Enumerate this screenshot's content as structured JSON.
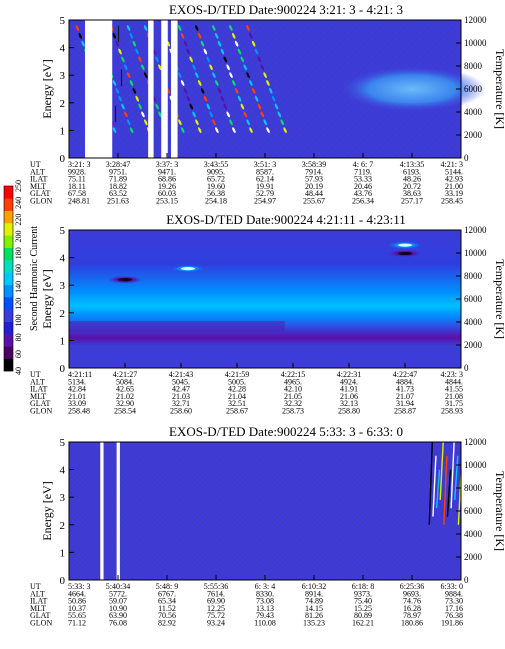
{
  "page": {
    "background": "#ffffff",
    "plot_color": "#3c3cd8",
    "grid_color": "#5a2c8c"
  },
  "colorbar": {
    "label": "Second Harmonic Current",
    "ticks": [
      "40",
      "60",
      "80",
      "100",
      "120",
      "140",
      "160",
      "180",
      "200",
      "220",
      "240",
      "250"
    ],
    "colors": [
      "#000000",
      "#4a0060",
      "#5a10a8",
      "#2020d0",
      "#3c3cd8",
      "#0050ff",
      "#0090ff",
      "#00c8ff",
      "#00e0c0",
      "#00e060",
      "#80f000",
      "#e0f000",
      "#ffa000",
      "#ff4000",
      "#ff0000"
    ]
  },
  "panels": [
    {
      "title": "EXOS-D/TED   Date:900224  3:21: 3 - 4:21: 3",
      "ylabel": "Energy [eV]",
      "y2label": "Temperature [K]",
      "yticks": [
        "0",
        "1",
        "2",
        "3",
        "4",
        "5"
      ],
      "y2ticks": [
        "0",
        "2000",
        "4000",
        "6000",
        "8000",
        "10000",
        "12000"
      ],
      "table": {
        "row_labels": [
          "UT",
          "ALT",
          "ILAT",
          "MLT",
          "GLAT",
          "GLON"
        ],
        "columns": [
          [
            "3:21: 3",
            "9928.",
            "75.11",
            "18.11",
            "67.58",
            "248.81"
          ],
          [
            "3:28:47",
            "9751.",
            "71.89",
            "18.82",
            "63.52",
            "251.63"
          ],
          [
            "3:37: 3",
            "9471.",
            "68.86",
            "19.26",
            "60.03",
            "253.15"
          ],
          [
            "3:43:55",
            "9095.",
            "65.72",
            "19.60",
            "56.38",
            "254.18"
          ],
          [
            "3:51: 3",
            "8587.",
            "62.14",
            "19.91",
            "52.79",
            "254.97"
          ],
          [
            "3:58:39",
            "7914.",
            "57.93",
            "20.19",
            "48.44",
            "255.67"
          ],
          [
            "4: 6: 7",
            "7119.",
            "53.33",
            "20.46",
            "43.76",
            "256.34"
          ],
          [
            "4:13:35",
            "6193.",
            "48.26",
            "20.72",
            "38.63",
            "257.17"
          ],
          [
            "4:21: 3",
            "5144.",
            "42.93",
            "21.00",
            "33.19",
            "258.45"
          ]
        ]
      }
    },
    {
      "title": "EXOS-D/TED   Date:900224  4:21:11 - 4:23:11",
      "ylabel": "Energy [eV]",
      "y2label": "Temperature [K]",
      "yticks": [
        "0",
        "1",
        "2",
        "3",
        "4",
        "5"
      ],
      "y2ticks": [
        "0",
        "2000",
        "4000",
        "6000",
        "8000",
        "10000",
        "12000"
      ],
      "table": {
        "row_labels": [
          "UT",
          "ALT",
          "ILAT",
          "MLT",
          "GLAT",
          "GLON"
        ],
        "columns": [
          [
            "4:21:11",
            "5134.",
            "42.84",
            "21.01",
            "33.09",
            "258.48"
          ],
          [
            "4:21:27",
            "5084.",
            "42.65",
            "21.02",
            "32.90",
            "258.54"
          ],
          [
            "4:21:43",
            "5045.",
            "42.47",
            "21.03",
            "32.71",
            "258.60"
          ],
          [
            "4:21:59",
            "5005.",
            "42.28",
            "21.04",
            "32.51",
            "258.67"
          ],
          [
            "4:22:15",
            "4965.",
            "42.10",
            "21.05",
            "32.32",
            "258.73"
          ],
          [
            "4:22:31",
            "4924.",
            "41.91",
            "21.06",
            "32.13",
            "258.80"
          ],
          [
            "4:22:47",
            "4884.",
            "41.73",
            "21.07",
            "31.94",
            "258.87"
          ],
          [
            "4:23: 3",
            "4844.",
            "41.55",
            "21.08",
            "31.75",
            "258.93"
          ]
        ]
      }
    },
    {
      "title": "EXOS-D/TED   Date:900224  5:33: 3 - 6:33: 0",
      "ylabel": "Energy [eV]",
      "y2label": "Temperature [K]",
      "yticks": [
        "0",
        "1",
        "2",
        "3",
        "4",
        "5"
      ],
      "y2ticks": [
        "0",
        "2000",
        "4000",
        "6000",
        "8000",
        "10000",
        "12000"
      ],
      "table": {
        "row_labels": [
          "UT",
          "ALT",
          "ILAT",
          "MLT",
          "GLAT",
          "GLON"
        ],
        "columns": [
          [
            "5:33: 3",
            "4664.",
            "50.86",
            "10.37",
            "55.65",
            "71.12"
          ],
          [
            "5:40:34",
            "5772.",
            "59.07",
            "10.90",
            "63.90",
            "76.08"
          ],
          [
            "5:48: 9",
            "6767.",
            "65.34",
            "11.52",
            "70.56",
            "82.92"
          ],
          [
            "5:55:36",
            "7614.",
            "69.90",
            "12.25",
            "75.72",
            "93.24"
          ],
          [
            "6: 3: 4",
            "8330.",
            "73.08",
            "13.13",
            "79.43",
            "110.08"
          ],
          [
            "6:10:32",
            "8914.",
            "74.89",
            "14.15",
            "81.26",
            "135.23"
          ],
          [
            "6:18: 8",
            "9373.",
            "75.40",
            "15.25",
            "80.89",
            "162.21"
          ],
          [
            "6:25:36",
            "9693.",
            "74.76",
            "16.28",
            "78.97",
            "180.86"
          ],
          [
            "6:33: 0",
            "9884.",
            "73.30",
            "17.16",
            "76.38",
            "191.86"
          ]
        ]
      }
    }
  ],
  "chart_data": [
    {
      "type": "heatmap",
      "title": "EXOS-D/TED   Date:900224  3:21: 3 - 4:21: 3",
      "xlabel": "UT",
      "ylabel": "Energy [eV]",
      "y2label": "Temperature [K]",
      "x": [
        "3:21: 3",
        "3:28:47",
        "3:37: 3",
        "3:43:55",
        "3:51: 3",
        "3:58:39",
        "4: 6: 7",
        "4:13:35",
        "4:21: 3"
      ],
      "ylim": [
        0,
        5
      ],
      "y2lim": [
        0,
        12000
      ],
      "data_gaps_ut": [
        "3:23:30-3:27:40",
        "3:33:10-3:34:00",
        "3:35:10-3:36:10",
        "3:36:40-3:37:40"
      ],
      "features": [
        {
          "type": "diagonal_striations",
          "x_range": [
            "3:22:20",
            "3:51:03"
          ],
          "energy_range_eV": [
            0.5,
            5
          ]
        },
        {
          "type": "enhanced_band",
          "x_range": [
            "4:00:00",
            "4:21:03"
          ],
          "temperature_range_K": [
            4000,
            8000
          ]
        }
      ]
    },
    {
      "type": "heatmap",
      "title": "EXOS-D/TED   Date:900224  4:21:11 - 4:23:11",
      "xlabel": "UT",
      "ylabel": "Energy [eV]",
      "y2label": "Temperature [K]",
      "x": [
        "4:21:11",
        "4:21:27",
        "4:21:43",
        "4:21:59",
        "4:22:15",
        "4:22:31",
        "4:22:47",
        "4:23: 3"
      ],
      "ylim": [
        0,
        5
      ],
      "y2lim": [
        0,
        12000
      ],
      "features": [
        {
          "type": "enhanced_band",
          "energy_range_eV": [
            2.0,
            2.9
          ],
          "level": "high"
        },
        {
          "type": "enhanced_band",
          "energy_range_eV": [
            3.3,
            4.2
          ],
          "level": "medium"
        },
        {
          "type": "depletion_band",
          "energy_range_eV": [
            1.3,
            1.7
          ]
        },
        {
          "type": "spot",
          "x": "4:21:27",
          "energy_eV": 3.2,
          "level": "low"
        },
        {
          "type": "spot",
          "x": "4:21:45",
          "energy_eV": 3.6,
          "level": "high"
        },
        {
          "type": "spot",
          "x": "4:22:47",
          "energy_eV": 4.45,
          "level": "high"
        },
        {
          "type": "spot",
          "x": "4:22:47",
          "energy_eV": 4.15,
          "level": "low"
        }
      ]
    },
    {
      "type": "heatmap",
      "title": "EXOS-D/TED   Date:900224  5:33: 3 - 6:33: 0",
      "xlabel": "UT",
      "ylabel": "Energy [eV]",
      "y2label": "Temperature [K]",
      "x": [
        "5:33: 3",
        "5:40:34",
        "5:48: 9",
        "5:55:36",
        "6: 3: 4",
        "6:10:32",
        "6:18: 8",
        "6:25:36",
        "6:33: 0"
      ],
      "ylim": [
        0,
        5
      ],
      "y2lim": [
        0,
        12000
      ],
      "data_gaps_ut": [
        "5:37:50-5:38:20",
        "5:40:20-5:40:50"
      ],
      "features": [
        {
          "type": "background_noise",
          "x_range": [
            "5:33:03",
            "6:33:00"
          ]
        },
        {
          "type": "spikes",
          "x_range": [
            "6:28:00",
            "6:33:00"
          ],
          "energy_range_eV": [
            2.0,
            5.0
          ]
        }
      ]
    }
  ]
}
